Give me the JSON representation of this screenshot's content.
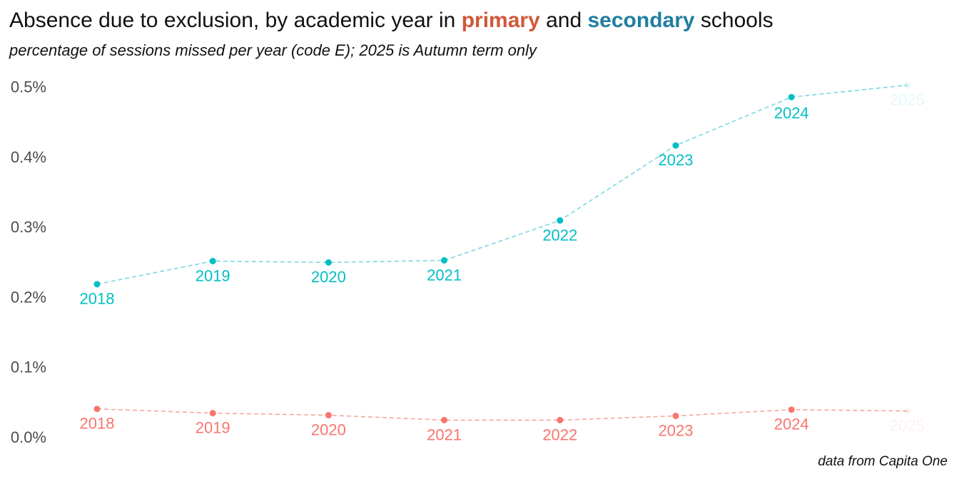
{
  "title": {
    "prefix": "Absence due to exclusion, by academic year in ",
    "primary_word": "primary",
    "middle": " and ",
    "secondary_word": "secondary",
    "suffix": " schools"
  },
  "subtitle": "percentage of sessions missed per year (code E); 2025 is Autumn term only",
  "caption": "data from Capita One",
  "colors": {
    "primary_title": "#d2573a",
    "secondary_title": "#1f7fa0",
    "primary_series": "#f8766d",
    "secondary_series": "#00bfc4",
    "primary_line": "#f4a89e",
    "secondary_line": "#7ad8e2"
  },
  "chart_data": {
    "type": "line",
    "x": [
      "2018",
      "2019",
      "2020",
      "2021",
      "2022",
      "2023",
      "2024",
      "2025"
    ],
    "series": [
      {
        "key": "secondary",
        "values": [
          0.218,
          0.251,
          0.249,
          0.252,
          0.309,
          0.416,
          0.485,
          0.502
        ],
        "faded_last": true
      },
      {
        "key": "primary",
        "values": [
          0.04,
          0.034,
          0.031,
          0.024,
          0.024,
          0.03,
          0.039,
          0.037
        ],
        "faded_last": true
      }
    ],
    "y_ticks": [
      "0.0%",
      "0.1%",
      "0.2%",
      "0.3%",
      "0.4%",
      "0.5%"
    ],
    "y_tick_values": [
      0.0,
      0.1,
      0.2,
      0.3,
      0.4,
      0.5
    ],
    "ylim": [
      0.0,
      0.5
    ],
    "grid": false,
    "line_style": "dashed"
  }
}
